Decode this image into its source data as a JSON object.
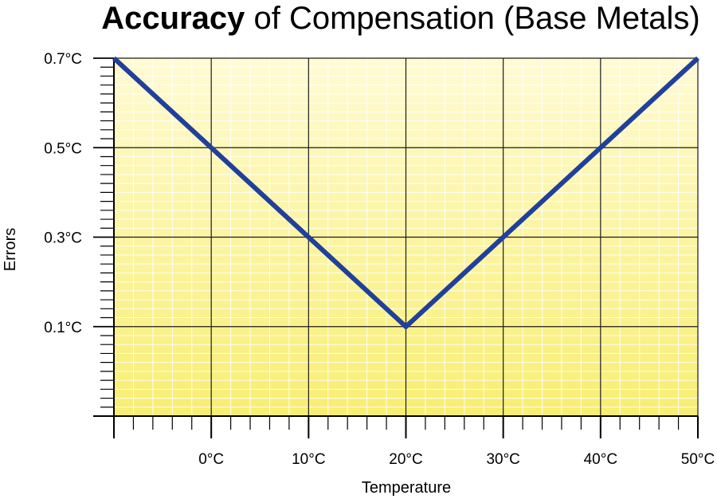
{
  "chart_data": {
    "type": "line",
    "title_bold": "Accuracy",
    "title_rest": " of Compensation (Base Metals)",
    "xlabel": "Temperature",
    "ylabel": "Errors",
    "x_unit": "°C",
    "xlim": [
      -10,
      50
    ],
    "ylim": [
      -0.1,
      0.7
    ],
    "x_tick_values": [
      0,
      10,
      20,
      30,
      40,
      50
    ],
    "x_tick_labels": [
      "0°C",
      "10°C",
      "20°C",
      "30°C",
      "40°C",
      "50°C"
    ],
    "y_tick_values": [
      0.1,
      0.3,
      0.5,
      0.7
    ],
    "y_tick_labels": [
      "0.1°C",
      "0.3°C",
      "0.5°C",
      "0.7°C"
    ],
    "grid": true,
    "series": [
      {
        "x": [
          -10,
          0,
          10,
          20,
          30,
          40,
          50
        ],
        "y": [
          0.7,
          0.5,
          0.3,
          0.1,
          0.3,
          0.5,
          0.7
        ],
        "color": "#21409a"
      }
    ],
    "colors": {
      "background_top": "#fffbd4",
      "background_bottom": "#f8ee72",
      "line": "#21409a",
      "major_grid": "#1a1a1a",
      "minor_grid": "#ffffff"
    }
  }
}
